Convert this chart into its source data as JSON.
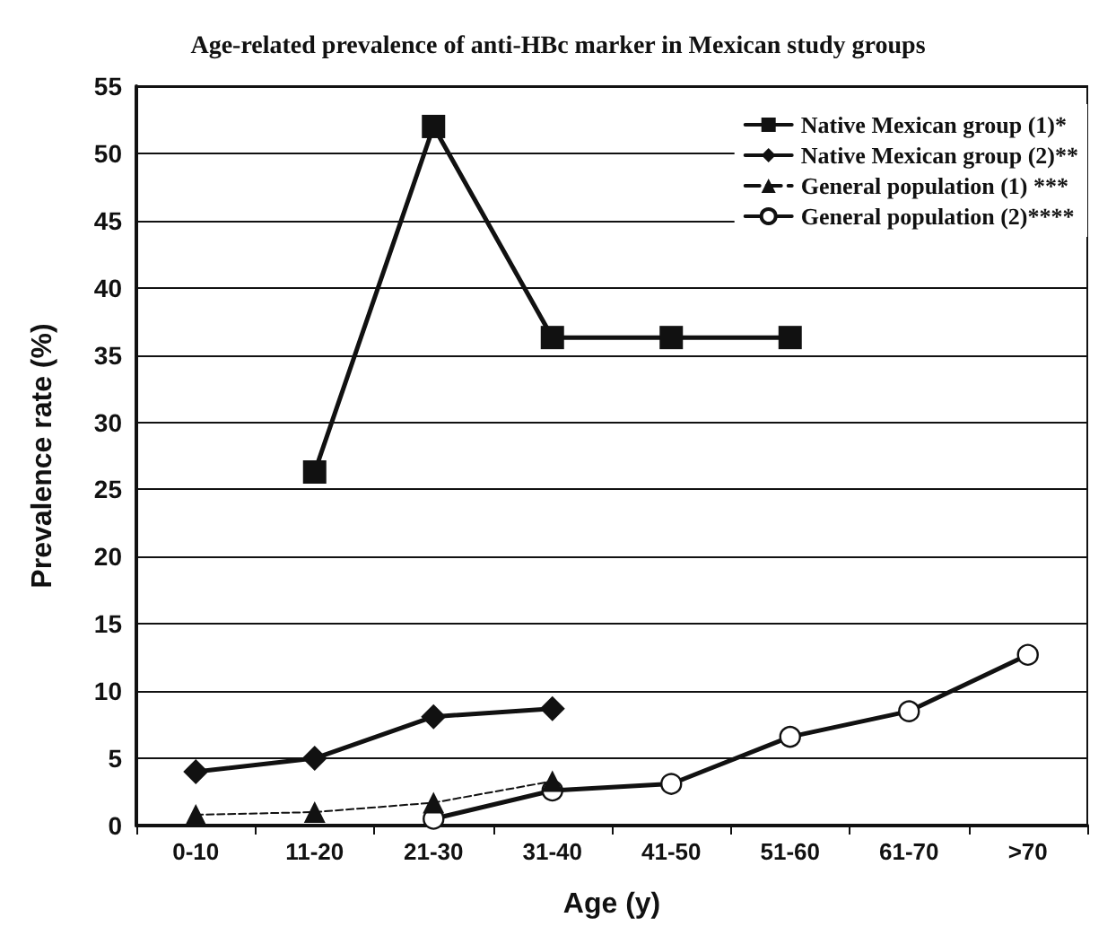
{
  "chart_data": {
    "type": "line",
    "title": "Age-related prevalence of anti-HBc marker in Mexican study groups",
    "xlabel": "Age (y)",
    "ylabel": "Prevalence rate (%)",
    "categories": [
      "0-10",
      "11-20",
      "21-30",
      "31-40",
      "41-50",
      "51-60",
      "61-70",
      ">70"
    ],
    "series": [
      {
        "name": "Native Mexican group (1)*",
        "color": "#111111",
        "marker": "square",
        "line_style": "solid",
        "values": [
          null,
          26.3,
          52,
          36.3,
          36.3,
          36.3,
          null,
          null
        ]
      },
      {
        "name": "Native Mexican group (2)**",
        "color": "#111111",
        "marker": "diamond",
        "line_style": "solid",
        "values": [
          4,
          5,
          8.1,
          8.7,
          null,
          null,
          null,
          null
        ]
      },
      {
        "name": "General population (1) ***",
        "color": "#111111",
        "marker": "triangle",
        "line_style": "dashed",
        "values": [
          0.8,
          1,
          1.7,
          3.3,
          null,
          null,
          null,
          null
        ]
      },
      {
        "name": "General population (2)****",
        "color": "#111111",
        "marker": "circle",
        "line_style": "solid",
        "values": [
          null,
          null,
          0.5,
          2.6,
          3.1,
          6.6,
          8.5,
          12.7
        ]
      }
    ],
    "ylim": [
      0,
      55
    ],
    "yticks": [
      0,
      5,
      10,
      15,
      20,
      25,
      30,
      35,
      40,
      45,
      50,
      55
    ],
    "grid": "y",
    "legend": "top right"
  }
}
